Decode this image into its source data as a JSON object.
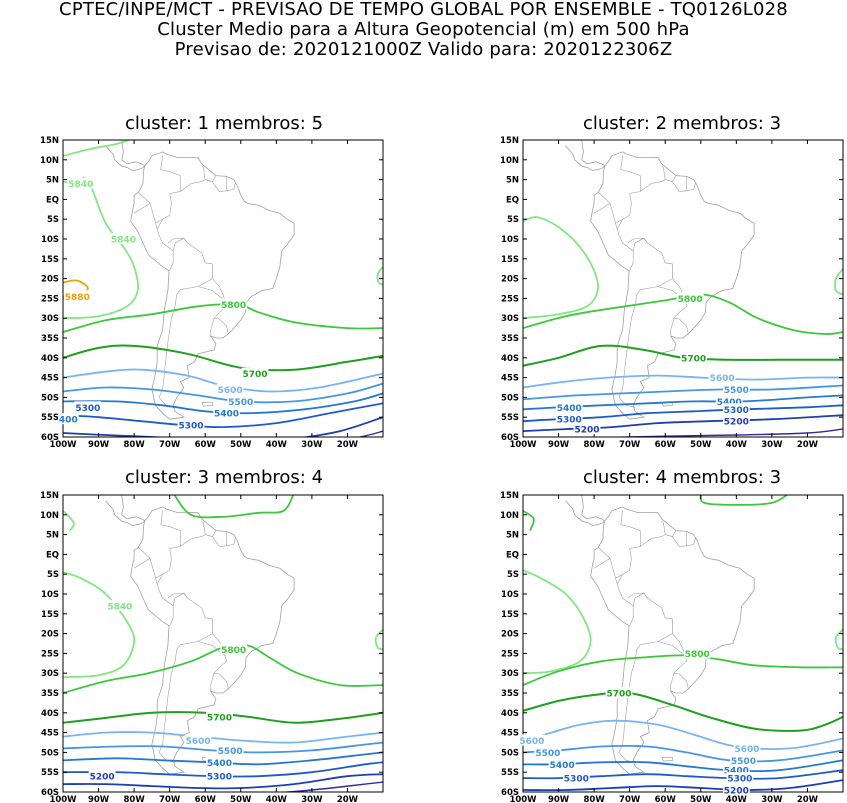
{
  "header": {
    "line1": "CPTEC/INPE/MCT - PREVISAO DE TEMPO GLOBAL POR ENSEMBLE - TQ0126L028",
    "line2": "Cluster Medio para a Altura Geopotencial (m) em 500 hPa",
    "line3": "Previsao de: 2020121000Z   Valido para: 2020122306Z"
  },
  "lat_ticks": [
    "15N",
    "10N",
    "5N",
    "EQ",
    "5S",
    "10S",
    "15S",
    "20S",
    "25S",
    "30S",
    "35S",
    "40S",
    "45S",
    "50S",
    "55S",
    "60S"
  ],
  "lon_ticks": [
    "100W",
    "90W",
    "80W",
    "70W",
    "60W",
    "50W",
    "40W",
    "30W",
    "20W"
  ],
  "colors": {
    "c5880": "#f0a000",
    "c5840": "#82e682",
    "c5800": "#3cc83c",
    "c5700": "#1ea01e",
    "c5600": "#78b4f0",
    "c5500": "#4696e6",
    "c5400": "#2378d2",
    "c5300": "#1e5ac8",
    "c5200": "#1e3cb4",
    "c5100": "#3228a0",
    "coast": "#a0a0a0"
  },
  "panels": [
    {
      "title": "cluster: 1   membros: 5",
      "labels": [
        {
          "text": "5840",
          "lon": -95,
          "lat": 4,
          "color": "#82e682"
        },
        {
          "text": "5840",
          "lon": -83,
          "lat": -10,
          "color": "#82e682"
        },
        {
          "text": "5880",
          "lon": -96,
          "lat": -24.5,
          "color": "#f0a000"
        },
        {
          "text": "5800",
          "lon": -52,
          "lat": -26.5,
          "color": "#3cc83c"
        },
        {
          "text": "5700",
          "lon": -46,
          "lat": -44,
          "color": "#1ea01e"
        },
        {
          "text": "5600",
          "lon": -53,
          "lat": -48,
          "color": "#78b4f0"
        },
        {
          "text": "5500",
          "lon": -50,
          "lat": -51,
          "color": "#4696e6"
        },
        {
          "text": "5400",
          "lon": -54,
          "lat": -54,
          "color": "#2378d2"
        },
        {
          "text": "5300",
          "lon": -93,
          "lat": -52.5,
          "color": "#1e5ac8"
        },
        {
          "text": "400",
          "lon": -98.5,
          "lat": -55.5,
          "color": "#2378d2"
        },
        {
          "text": "5300",
          "lon": -64,
          "lat": -57,
          "color": "#1e5ac8"
        }
      ]
    },
    {
      "title": "cluster: 2   membros: 3",
      "labels": [
        {
          "text": "5800",
          "lon": -53,
          "lat": -25,
          "color": "#3cc83c"
        },
        {
          "text": "5700",
          "lon": -52,
          "lat": -40,
          "color": "#1ea01e"
        },
        {
          "text": "5600",
          "lon": -44,
          "lat": -45,
          "color": "#78b4f0"
        },
        {
          "text": "5500",
          "lon": -40,
          "lat": -48,
          "color": "#4696e6"
        },
        {
          "text": "5400",
          "lon": -42,
          "lat": -51,
          "color": "#2378d2"
        },
        {
          "text": "5400",
          "lon": -87,
          "lat": -52.5,
          "color": "#2378d2"
        },
        {
          "text": "5300",
          "lon": -40,
          "lat": -53,
          "color": "#1e5ac8"
        },
        {
          "text": "5300",
          "lon": -87,
          "lat": -55.5,
          "color": "#1e5ac8"
        },
        {
          "text": "5200",
          "lon": -40,
          "lat": -56,
          "color": "#1e3cb4"
        },
        {
          "text": "5200",
          "lon": -82,
          "lat": -58,
          "color": "#1e3cb4"
        }
      ]
    },
    {
      "title": "cluster: 3   membros: 4",
      "labels": [
        {
          "text": "5840",
          "lon": -84,
          "lat": -13,
          "color": "#82e682"
        },
        {
          "text": "5800",
          "lon": -52,
          "lat": -24,
          "color": "#3cc83c"
        },
        {
          "text": "5700",
          "lon": -56,
          "lat": -41,
          "color": "#1ea01e"
        },
        {
          "text": "5600",
          "lon": -62,
          "lat": -47,
          "color": "#78b4f0"
        },
        {
          "text": "5500",
          "lon": -53,
          "lat": -49.5,
          "color": "#4696e6"
        },
        {
          "text": "5400",
          "lon": -56,
          "lat": -52.5,
          "color": "#2378d2"
        },
        {
          "text": "5300",
          "lon": -56,
          "lat": -56,
          "color": "#1e5ac8"
        },
        {
          "text": "5200",
          "lon": -89,
          "lat": -56,
          "color": "#1e3cb4"
        }
      ]
    },
    {
      "title": "cluster: 4   membros: 3",
      "labels": [
        {
          "text": "5800",
          "lon": -51,
          "lat": -25,
          "color": "#3cc83c"
        },
        {
          "text": "5700",
          "lon": -73,
          "lat": -35,
          "color": "#1ea01e"
        },
        {
          "text": "5600",
          "lon": -97.5,
          "lat": -47,
          "color": "#78b4f0"
        },
        {
          "text": "5600",
          "lon": -37,
          "lat": -49,
          "color": "#78b4f0"
        },
        {
          "text": "5500",
          "lon": -93,
          "lat": -50,
          "color": "#4696e6"
        },
        {
          "text": "5500",
          "lon": -38,
          "lat": -52,
          "color": "#4696e6"
        },
        {
          "text": "5400",
          "lon": -89,
          "lat": -53,
          "color": "#2378d2"
        },
        {
          "text": "5400",
          "lon": -40,
          "lat": -54.5,
          "color": "#2378d2"
        },
        {
          "text": "5300",
          "lon": -85,
          "lat": -56.5,
          "color": "#1e5ac8"
        },
        {
          "text": "5300",
          "lon": -39,
          "lat": -56.5,
          "color": "#1e5ac8"
        },
        {
          "text": "5200",
          "lon": -40,
          "lat": -59.5,
          "color": "#1e3cb4"
        }
      ]
    }
  ]
}
